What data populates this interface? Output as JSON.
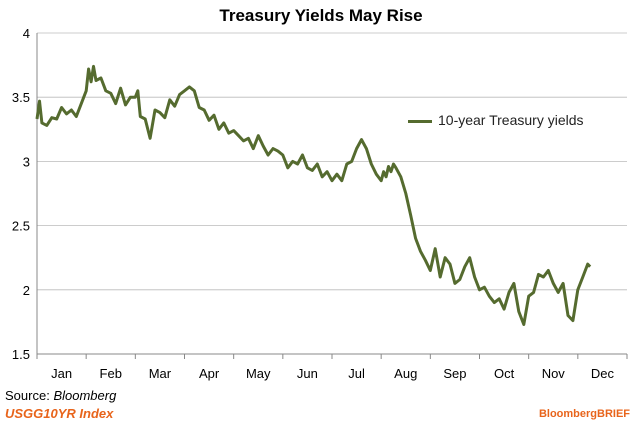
{
  "title": "Treasury Yields May Rise",
  "legend_label": "10-year Treasury yields",
  "source_label": "Source:",
  "source_name": "Bloomberg",
  "index_label": "USGG10YR Index",
  "brand": "BloombergBRIEF",
  "colors": {
    "line": "#556b2f",
    "brand": "#e8641b",
    "axis": "#888888",
    "grid": "#bbbbbb"
  },
  "chart_data": {
    "type": "line",
    "title": "Treasury Yields May Rise",
    "xlabel": "",
    "ylabel": "",
    "ylim": [
      1.5,
      4
    ],
    "yticks": [
      "4",
      "3.5",
      "3",
      "2.5",
      "2",
      "1.5"
    ],
    "ytick_values": [
      4,
      3.5,
      3,
      2.5,
      2,
      1.5
    ],
    "x_categories": [
      "Jan",
      "Feb",
      "Mar",
      "Apr",
      "May",
      "Jun",
      "Jul",
      "Aug",
      "Sep",
      "Oct",
      "Nov",
      "Dec"
    ],
    "grid": "horizontal",
    "series": [
      {
        "name": "10-year Treasury yields",
        "x": [
          0,
          0.05,
          0.1,
          0.2,
          0.3,
          0.4,
          0.5,
          0.6,
          0.7,
          0.8,
          0.9,
          1.0,
          1.05,
          1.1,
          1.15,
          1.2,
          1.3,
          1.4,
          1.5,
          1.6,
          1.7,
          1.8,
          1.9,
          2.0,
          2.05,
          2.1,
          2.2,
          2.3,
          2.4,
          2.5,
          2.6,
          2.7,
          2.8,
          2.9,
          3.0,
          3.1,
          3.2,
          3.3,
          3.4,
          3.5,
          3.6,
          3.7,
          3.8,
          3.9,
          4.0,
          4.1,
          4.2,
          4.3,
          4.4,
          4.5,
          4.6,
          4.7,
          4.8,
          4.9,
          5.0,
          5.1,
          5.2,
          5.3,
          5.4,
          5.5,
          5.6,
          5.7,
          5.8,
          5.9,
          6.0,
          6.1,
          6.2,
          6.3,
          6.4,
          6.5,
          6.6,
          6.7,
          6.8,
          6.9,
          7.0,
          7.05,
          7.1,
          7.15,
          7.2,
          7.25,
          7.3,
          7.4,
          7.5,
          7.6,
          7.7,
          7.8,
          7.9,
          8.0,
          8.1,
          8.2,
          8.3,
          8.4,
          8.5,
          8.6,
          8.7,
          8.8,
          8.9,
          9.0,
          9.1,
          9.2,
          9.3,
          9.4,
          9.5,
          9.6,
          9.7,
          9.8,
          9.9,
          10.0,
          10.1,
          10.2,
          10.3,
          10.4,
          10.5,
          10.6,
          10.7,
          10.8,
          10.9,
          11.0,
          11.1,
          11.2,
          11.25
        ],
        "values": [
          3.33,
          3.47,
          3.3,
          3.28,
          3.34,
          3.33,
          3.42,
          3.37,
          3.4,
          3.35,
          3.45,
          3.55,
          3.72,
          3.62,
          3.74,
          3.63,
          3.65,
          3.55,
          3.53,
          3.45,
          3.57,
          3.44,
          3.5,
          3.5,
          3.55,
          3.35,
          3.33,
          3.18,
          3.4,
          3.38,
          3.34,
          3.48,
          3.43,
          3.52,
          3.55,
          3.58,
          3.55,
          3.42,
          3.4,
          3.32,
          3.36,
          3.25,
          3.3,
          3.22,
          3.24,
          3.2,
          3.16,
          3.18,
          3.1,
          3.2,
          3.12,
          3.05,
          3.1,
          3.08,
          3.05,
          2.95,
          3.0,
          2.98,
          3.05,
          2.95,
          2.93,
          2.98,
          2.88,
          2.92,
          2.85,
          2.9,
          2.85,
          2.98,
          3.0,
          3.1,
          3.17,
          3.1,
          2.98,
          2.9,
          2.85,
          2.92,
          2.88,
          2.96,
          2.92,
          2.98,
          2.95,
          2.88,
          2.75,
          2.58,
          2.4,
          2.3,
          2.23,
          2.15,
          2.32,
          2.1,
          2.25,
          2.2,
          2.05,
          2.08,
          2.18,
          2.25,
          2.1,
          2.0,
          2.02,
          1.95,
          1.9,
          1.93,
          1.85,
          1.98,
          2.05,
          1.83,
          1.73,
          1.95,
          1.98,
          2.12,
          2.1,
          2.15,
          2.05,
          1.98,
          2.05,
          1.8,
          1.76,
          2.0,
          2.1,
          2.2,
          2.18
        ]
      }
    ]
  }
}
